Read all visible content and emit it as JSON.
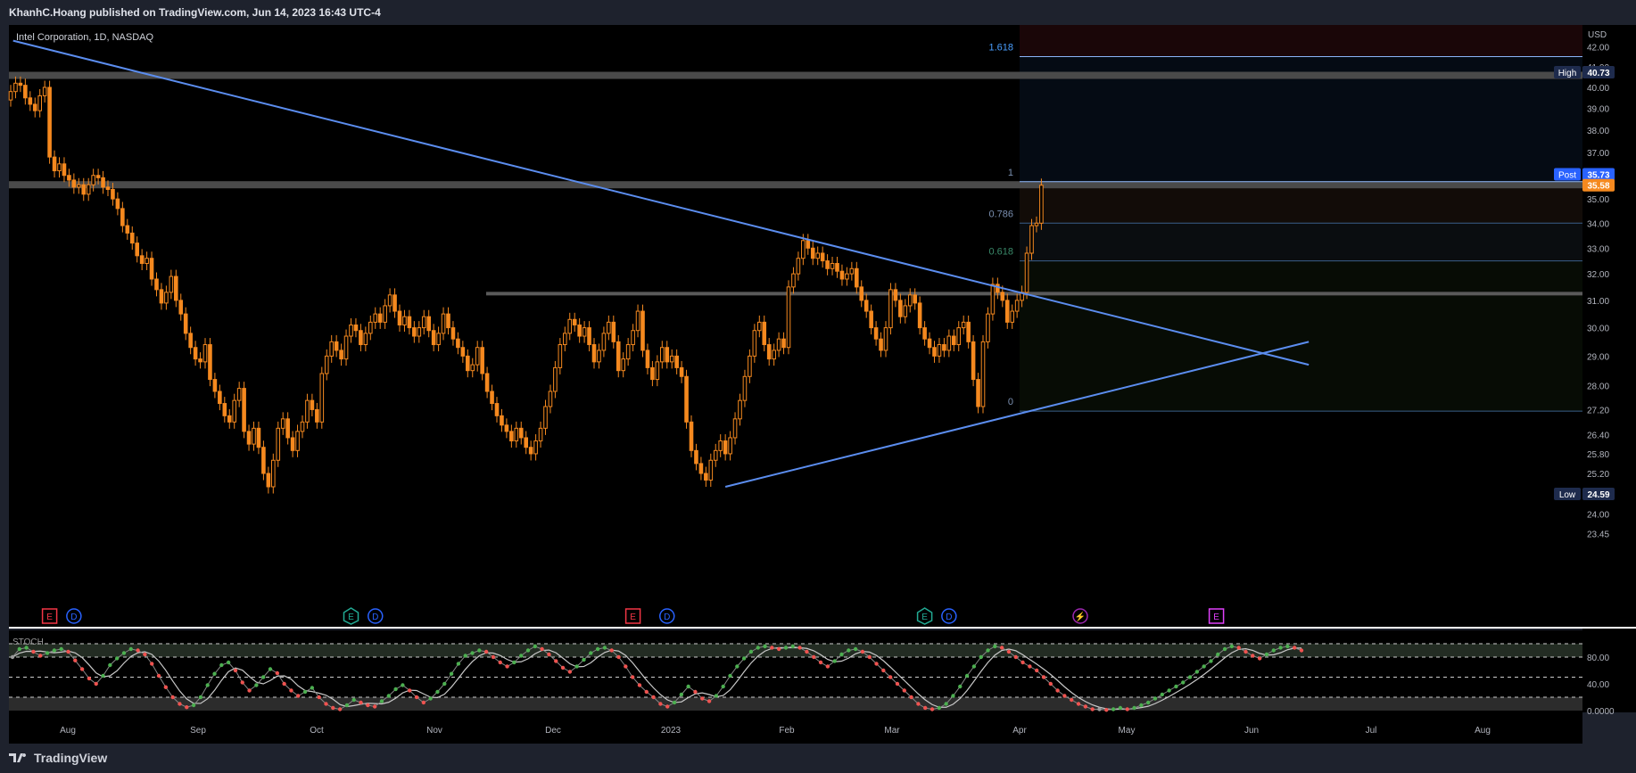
{
  "header": {
    "publish_text": "KhanhC.Hoang published on TradingView.com, Jun 14, 2023 16:43 UTC-4"
  },
  "footer": {
    "brand": "TradingView",
    "logo_icon": "tradingview-logo-icon"
  },
  "colors": {
    "background": "#000000",
    "frame": "#1e222d",
    "candle": "#f5891f",
    "trendline": "#5b8def",
    "fib_label": "#3d7fd8",
    "zone": "#4a4a4a",
    "stoch_up": "#4caf50",
    "stoch_down": "#ef5350",
    "stoch_neutral": "#9a9a9a",
    "stoch_signal": "#c8c8c8",
    "badge_blue": "#1e2b4d",
    "badge_orange": "#f5891f"
  },
  "chart_data": {
    "type": "candlestick",
    "title": "Intel Corporation, 1D, NASDAQ",
    "currency": "USD",
    "price_range": [
      23.45,
      43.0
    ],
    "price_scale": "log",
    "price_ticks": [
      "42.00",
      "41.00",
      "40.00",
      "39.00",
      "38.00",
      "37.00",
      "36.00",
      "35.00",
      "34.00",
      "33.00",
      "32.00",
      "31.00",
      "30.00",
      "29.00",
      "28.00",
      "27.20",
      "26.40",
      "25.80",
      "25.20",
      "24.00",
      "23.45"
    ],
    "time_ticks": [
      "Aug",
      "Sep",
      "Oct",
      "Nov",
      "Dec",
      "2023",
      "Feb",
      "Mar",
      "Apr",
      "May",
      "Jun",
      "Jul",
      "Aug"
    ],
    "close_series": [
      39.8,
      40.2,
      40.1,
      39.5,
      39.2,
      38.9,
      39.6,
      40.0,
      36.8,
      36.2,
      36.5,
      36.0,
      35.8,
      35.5,
      35.6,
      35.2,
      35.6,
      36.0,
      35.9,
      35.5,
      35.4,
      35.0,
      34.6,
      33.9,
      33.6,
      33.2,
      32.7,
      32.4,
      32.6,
      31.8,
      31.4,
      30.9,
      31.3,
      31.9,
      31.0,
      30.5,
      29.8,
      29.3,
      28.9,
      28.8,
      29.4,
      28.2,
      27.8,
      27.4,
      27.0,
      26.8,
      27.5,
      27.9,
      26.5,
      26.1,
      26.6,
      26.0,
      25.2,
      24.8,
      25.6,
      26.6,
      26.9,
      26.3,
      25.9,
      26.5,
      26.8,
      27.5,
      27.2,
      26.8,
      28.4,
      29.0,
      29.5,
      29.2,
      28.9,
      29.7,
      30.1,
      29.9,
      29.4,
      29.8,
      30.2,
      30.5,
      30.2,
      30.8,
      31.2,
      30.6,
      30.1,
      30.4,
      30.0,
      29.7,
      30.0,
      30.4,
      29.9,
      29.4,
      29.8,
      30.5,
      30.0,
      29.6,
      29.3,
      29.0,
      28.5,
      28.7,
      29.3,
      28.4,
      27.8,
      27.4,
      27.0,
      26.7,
      26.5,
      26.2,
      26.6,
      26.3,
      26.0,
      25.8,
      26.2,
      26.6,
      27.3,
      27.8,
      28.6,
      29.4,
      29.8,
      30.3,
      30.1,
      29.7,
      30.0,
      29.4,
      28.8,
      29.2,
      29.8,
      30.2,
      29.5,
      28.5,
      28.9,
      29.4,
      29.9,
      30.6,
      29.2,
      28.6,
      28.2,
      28.8,
      29.3,
      28.8,
      29.0,
      28.6,
      28.3,
      26.8,
      25.9,
      25.5,
      25.2,
      25.0,
      25.6,
      25.9,
      26.2,
      25.8,
      26.3,
      26.9,
      27.5,
      28.3,
      29.0,
      29.9,
      30.2,
      29.4,
      28.9,
      29.2,
      29.6,
      29.3,
      31.5,
      32.0,
      32.6,
      33.3,
      33.0,
      32.6,
      32.8,
      32.5,
      32.2,
      32.4,
      32.1,
      31.8,
      32.0,
      32.2,
      31.5,
      31.0,
      30.6,
      30.0,
      29.6,
      29.2,
      30.0,
      31.4,
      31.0,
      30.4,
      30.8,
      31.2,
      30.9,
      30.0,
      29.6,
      29.3,
      29.0,
      29.4,
      29.2,
      29.7,
      29.4,
      30.0,
      30.2,
      29.5,
      28.2,
      27.3,
      29.5,
      30.5,
      31.6,
      31.3,
      31.0,
      30.2,
      30.6,
      31.0,
      31.3,
      32.8,
      33.9,
      34.0,
      35.58
    ],
    "last_price": "35.58",
    "post_price": "35.73",
    "high_label": "High",
    "high_value": "40.73",
    "low_label": "Low",
    "low_value": "24.59",
    "post_label": "Post",
    "fib_levels": [
      {
        "label": "1.618",
        "price": 41.5
      },
      {
        "label": "1",
        "price": 35.73
      },
      {
        "label": "0.786",
        "price": 34.0
      },
      {
        "label": "0.618",
        "price": 32.5
      },
      {
        "label": "0",
        "price": 27.15
      }
    ],
    "zones": [
      40.58,
      35.6,
      31.25
    ],
    "trendlines": [
      {
        "from": [
          0.5,
          42.3
        ],
        "to": [
          267,
          28.7
        ]
      },
      {
        "from": [
          147,
          24.8
        ],
        "to": [
          267,
          29.5
        ]
      }
    ],
    "event_markers": [
      {
        "letter": "E",
        "index": 8,
        "style": "earnings-red"
      },
      {
        "letter": "D",
        "index": 13,
        "style": "dividend"
      },
      {
        "letter": "E",
        "index": 70,
        "style": "earnings-green"
      },
      {
        "letter": "D",
        "index": 75,
        "style": "dividend"
      },
      {
        "letter": "E",
        "index": 128,
        "style": "earnings-red"
      },
      {
        "letter": "D",
        "index": 135,
        "style": "dividend"
      },
      {
        "letter": "E",
        "index": 188,
        "style": "earnings-green"
      },
      {
        "letter": "D",
        "index": 193,
        "style": "dividend"
      },
      {
        "letter": "⚡",
        "index": 220,
        "style": "split"
      },
      {
        "letter": "E",
        "index": 248,
        "style": "earnings-purple"
      }
    ],
    "indicator": {
      "name": "STOCH",
      "levels": [
        "80.00",
        "40.00",
        "0.0000"
      ],
      "values": [
        80,
        92,
        94,
        88,
        82,
        86,
        90,
        92,
        88,
        75,
        62,
        48,
        40,
        52,
        68,
        78,
        86,
        92,
        90,
        84,
        70,
        52,
        35,
        20,
        10,
        5,
        8,
        20,
        38,
        55,
        68,
        72,
        60,
        42,
        30,
        38,
        50,
        62,
        56,
        40,
        30,
        22,
        28,
        34,
        20,
        10,
        4,
        2,
        8,
        16,
        12,
        8,
        6,
        14,
        22,
        32,
        38,
        30,
        20,
        12,
        18,
        28,
        40,
        55,
        70,
        82,
        86,
        90,
        88,
        80,
        72,
        66,
        72,
        82,
        90,
        96,
        92,
        84,
        74,
        64,
        58,
        66,
        76,
        86,
        92,
        94,
        90,
        80,
        66,
        50,
        38,
        28,
        20,
        10,
        6,
        12,
        24,
        36,
        28,
        18,
        14,
        22,
        36,
        52,
        66,
        78,
        88,
        94,
        96,
        94,
        92,
        94,
        96,
        94,
        88,
        80,
        72,
        66,
        74,
        84,
        90,
        92,
        88,
        80,
        70,
        60,
        50,
        40,
        30,
        20,
        10,
        4,
        2,
        4,
        10,
        22,
        36,
        52,
        66,
        80,
        90,
        96,
        94,
        88,
        80,
        72,
        66,
        60,
        50,
        40,
        30,
        22,
        16,
        10,
        6,
        2,
        2,
        1,
        2,
        4,
        2,
        4,
        8,
        12,
        18,
        24,
        30,
        36,
        42,
        50,
        58,
        66,
        74,
        84,
        92,
        96,
        94,
        88,
        82,
        78,
        84,
        90,
        94,
        96,
        94,
        90
      ]
    }
  }
}
